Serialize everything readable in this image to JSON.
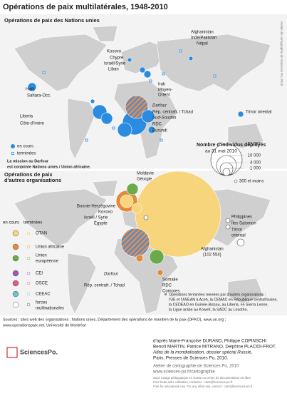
{
  "title": "Opérations de paix multilatérales, 1948-2010",
  "side_credit": "Atelier de cartographie de Sciences Po, 2010",
  "un_map": {
    "heading": "Opérations de paix des Nations unies",
    "labels": [
      "Afghanistan",
      "Inde/Pakistan",
      "Népal",
      "Kosovo",
      "Chypre",
      "Israël/Syrie",
      "Liban",
      "Haïti",
      "Sahara-Occ.",
      "Irak",
      "Moyen-",
      "Orient",
      "Timor oriental",
      "Darfour",
      "Rép. centrafr. / Tchad",
      "Sud-Soudan",
      "RDC",
      "Burundi",
      "Liberia",
      "Côte-d'Ivoire"
    ],
    "legend": [
      "en cours",
      "terminées"
    ],
    "note": [
      "La mission au Darfour",
      "est conjointe Nations unies / Union africaine."
    ]
  },
  "size_legend": {
    "title": "Nombre d'individus déployés",
    "subtitle": "au 31 mai 2010",
    "values": [
      "22 087",
      "10 000",
      "4 000",
      "1 000"
    ],
    "small": "300 et moins"
  },
  "other_map": {
    "heading": [
      "Opérations de paix",
      "d'autres organisations"
    ],
    "labels": [
      "Moldavie",
      "Géorgie",
      "Bosnie-Herzégovine",
      "Kosovo",
      "Israël / Syrie",
      "Égypte",
      "Afghanistan",
      "(102 554)",
      "Philippines",
      "Îles Salomon",
      "Timor",
      "oriental",
      "Darfour",
      "Rép. centrafr. / Tchad",
      "Somalie",
      "RDC",
      "Comores"
    ],
    "legend_headers": [
      "en cours",
      "terminées"
    ],
    "organisations": [
      "OTAN",
      "Union africaine",
      "Union",
      "européenne",
      "CEI",
      "OSCE",
      "CEEAC",
      "forces",
      "multinationales"
    ],
    "note": [
      "Opérations terminées menées par d'autres organisations :",
      "l'UE et l'ASEAN à Aceh, la CEMAC en République centrafricaine,",
      "la CEDEAO en Guinée-Bissau, au Liberia, en Sierra Leone,",
      "la Ligue arabe au Koweït, la SADC au Lesotho."
    ]
  },
  "sources": [
    "Sources : sites web des organisations ; Nations unies, Département des opérations de maintien de la paix (DPKO), www.un.org ;",
    "www.operationspaix.net, Université de Montréal"
  ],
  "credits": [
    "d'après Marie-Françoise DURAND, Philippe COPINSCHI",
    "Benoît MARTIN, Patrice MITRANO, Delphine PLACIDI-FROT,",
    "Atlas de la mondialisation, dossier spécial Russie,",
    "Paris, Presses de Sciences Po, 2010."
  ],
  "atelier": [
    "Atelier de cartographie de Sciences Po, 2010",
    "www.sciences-po.fr/cartographie"
  ],
  "logo": "SciencesPo.",
  "fine_print": [
    "Sous l'usage pédagogique en classe ou centre de documentation est libre.",
    "Pour toute autre utilisation, contacter : carto@sciences-po.fr",
    "Free for educational use. For any other use, contact : carto@sciences-po.fr"
  ]
}
